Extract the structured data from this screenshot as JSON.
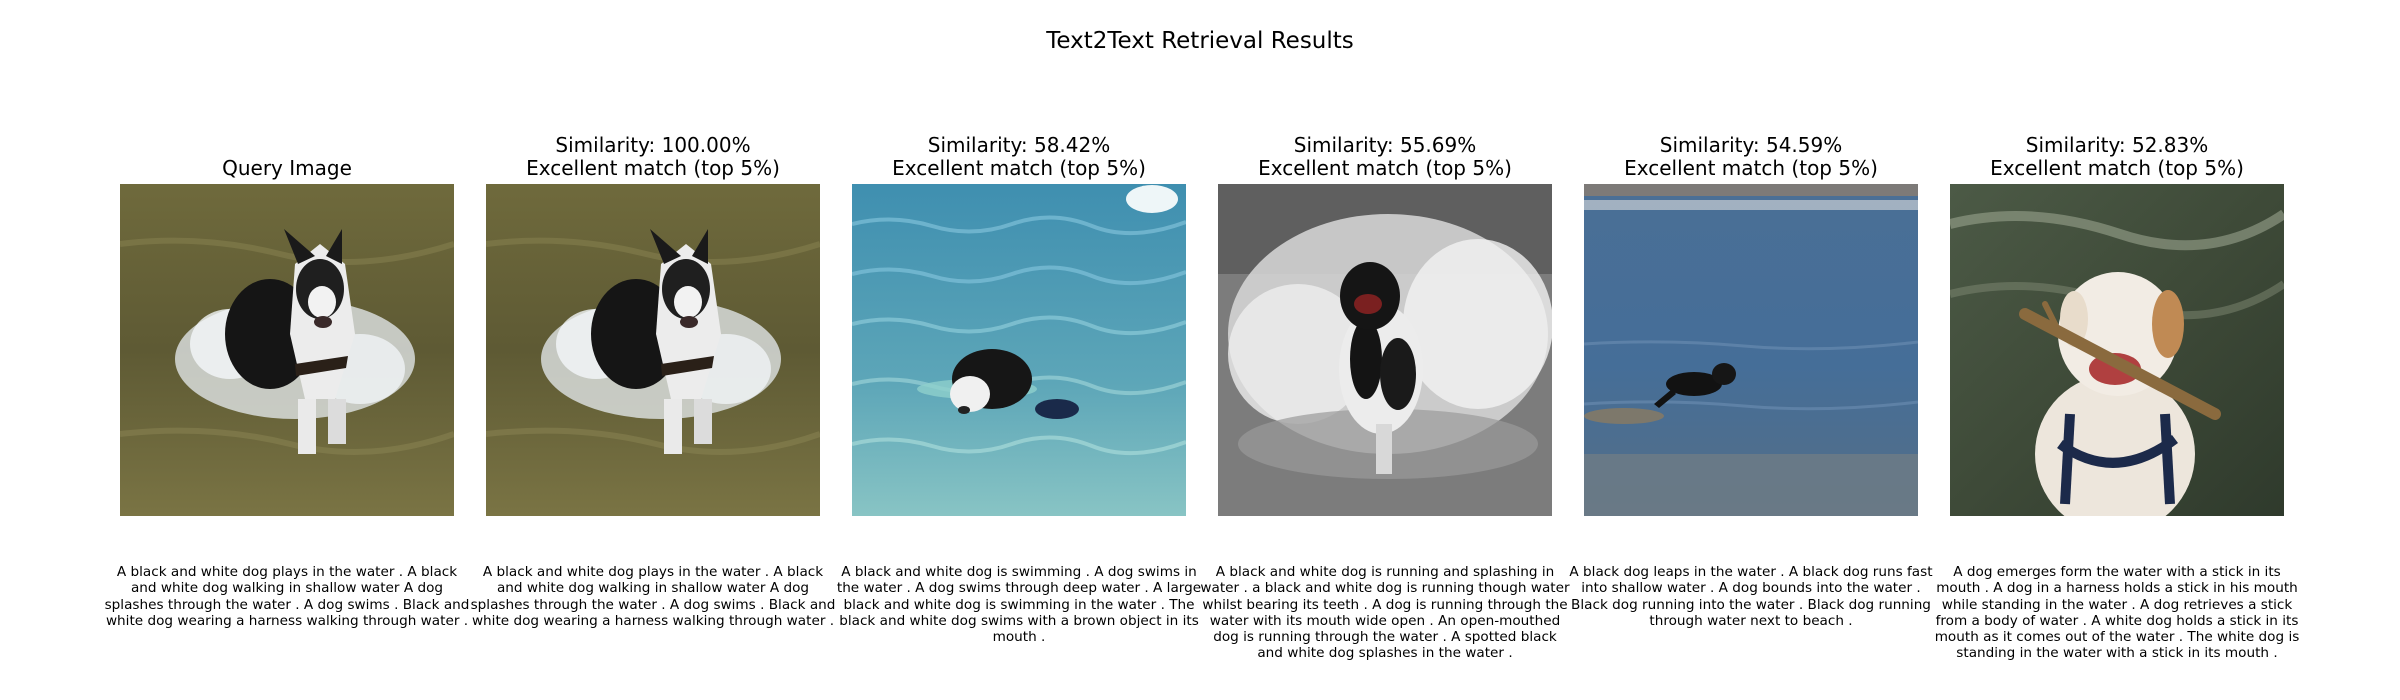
{
  "title": "Text2Text Retrieval Results",
  "panels": [
    {
      "heading": "Query Image",
      "caption": "A black and white dog plays in the water . A black and white dog walking in shallow water A dog splashes through the water . A dog swims . Black and white dog wearing a harness walking through water ."
    },
    {
      "heading": "Similarity: 100.00%\nExcellent match (top 5%)",
      "caption": "A black and white dog plays in the water . A black and white dog walking in shallow water A dog splashes through the water . A dog swims . Black and white dog wearing a harness walking through water ."
    },
    {
      "heading": "Similarity: 58.42%\nExcellent match (top 5%)",
      "caption": "A black and white dog is swimming . A dog swims in the water . A dog swims through deep water . A large black and white dog is swimming in the water . The black and white dog swims with a brown object in its mouth ."
    },
    {
      "heading": "Similarity: 55.69%\nExcellent match (top 5%)",
      "caption": "A black and white dog is running and splashing in water . a black and white dog is running though water whilst bearing its teeth . A dog is running through the water with its mouth wide open . An open-mouthed dog is running through the water . A spotted black and white dog splashes in the water ."
    },
    {
      "heading": "Similarity: 54.59%\nExcellent match (top 5%)",
      "caption": "A black dog leaps in the water . A black dog runs fast into shallow water . A dog bounds into the water . Black dog running into the water . Black dog running through water next to beach ."
    },
    {
      "heading": "Similarity: 52.83%\nExcellent match (top 5%)",
      "caption": "A dog emerges form the water with a stick in its mouth . A dog in a harness holds a stick in his mouth while standing in the water . A dog retrieves a stick from a body of water . A white dog holds a stick in its mouth as it comes out of the water . The white dog is standing in the water with a stick in its mouth ."
    }
  ]
}
